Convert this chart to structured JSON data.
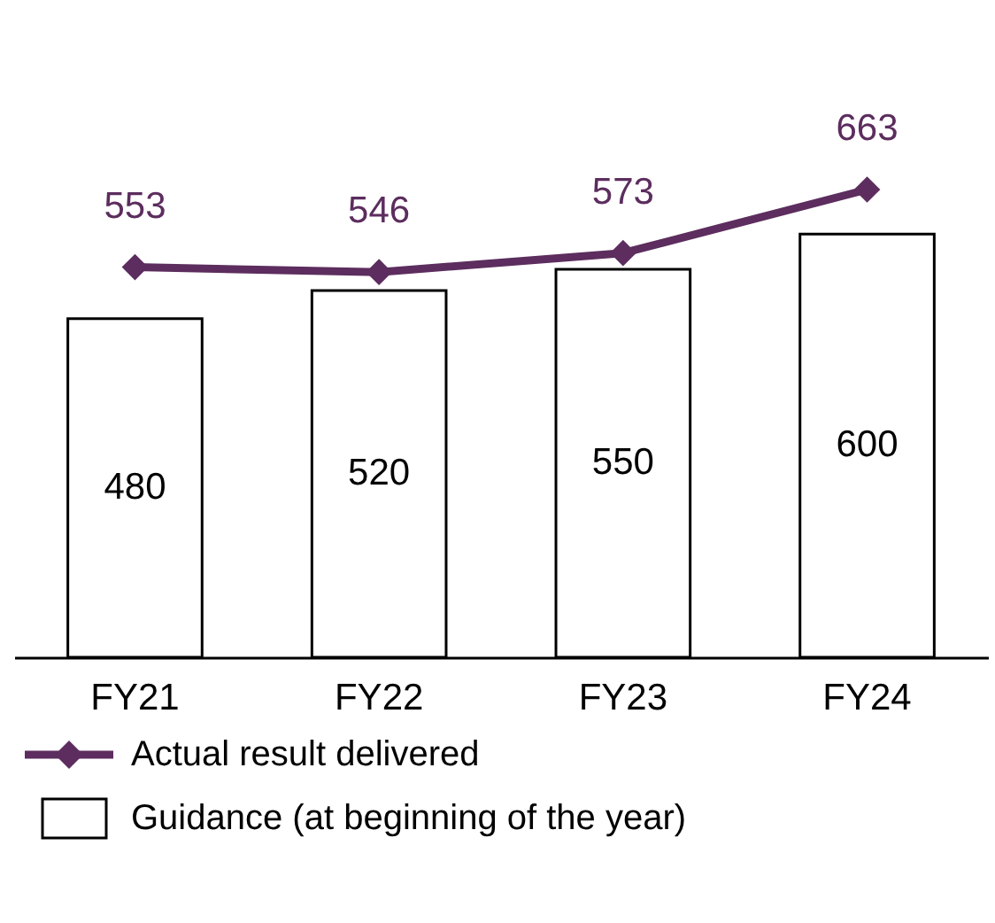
{
  "chart_data": {
    "type": "bar",
    "categories": [
      "FY21",
      "FY22",
      "FY23",
      "FY24"
    ],
    "series": [
      {
        "name": "Actual result delivered",
        "type": "line",
        "color": "#5c2d5e",
        "values": [
          553,
          546,
          573,
          663
        ]
      },
      {
        "name": "Guidance (at beginning of the year)",
        "color": "#ffffff",
        "values": [
          480,
          520,
          550,
          600
        ]
      }
    ],
    "tick_labels": "x",
    "data_labels": true,
    "marker": "diamond",
    "legend": "bottom left"
  }
}
